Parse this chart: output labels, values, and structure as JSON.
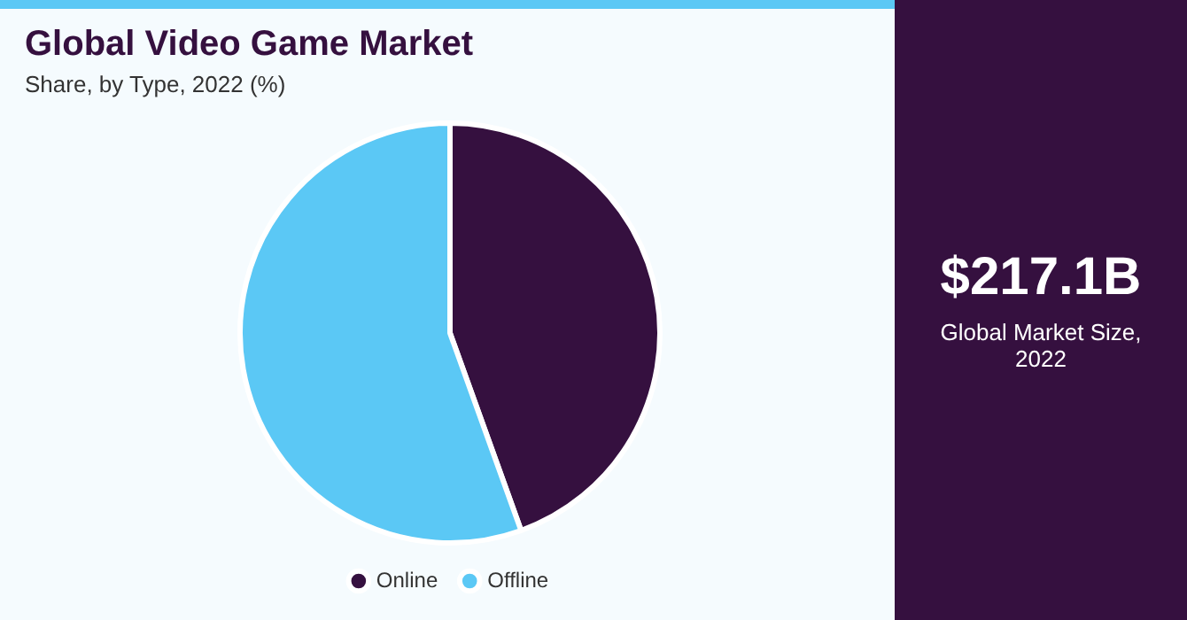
{
  "chart_data": {
    "type": "pie",
    "title": "Global Video Game Market",
    "subtitle": "Share, by Type, 2022 (%)",
    "categories": [
      "Online",
      "Offline"
    ],
    "values": [
      44.5,
      55.5
    ],
    "colors": [
      "#35103f",
      "#5bc8f5"
    ],
    "legend": "bottom",
    "annotations": [
      "$217.1B",
      "Global Market Size, 2022"
    ]
  }
}
